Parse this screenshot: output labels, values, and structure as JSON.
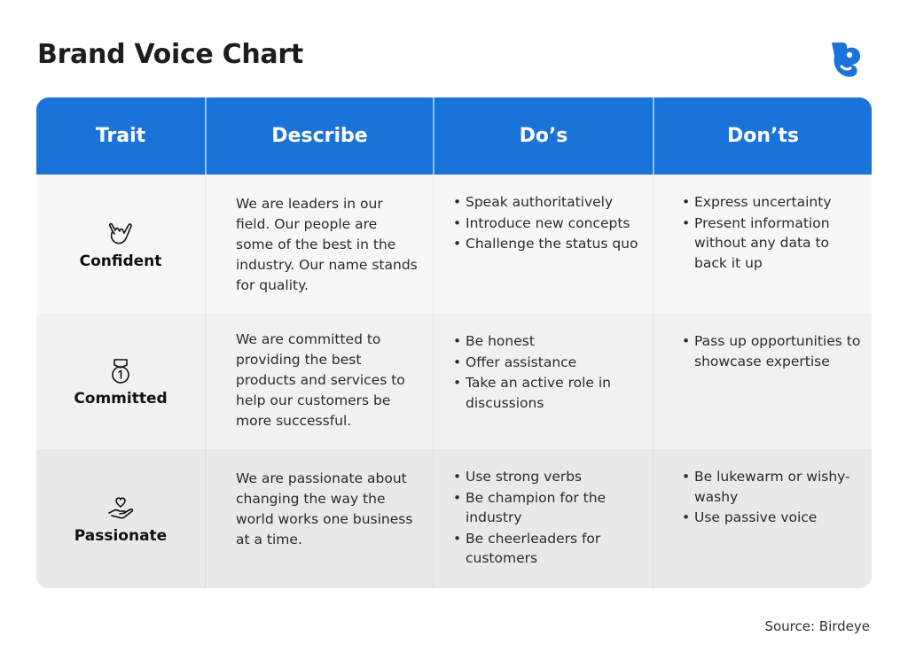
{
  "title": "Brand Voice Chart",
  "logo_icon": "birdeye-logo-icon",
  "colors": {
    "header": "#1a73d9",
    "logo": "#1a73d9"
  },
  "headers": [
    "Trait",
    "Describe",
    "Do’s",
    "Don’ts"
  ],
  "rows": [
    {
      "trait": "Confident",
      "icon": "rock-hand-icon",
      "describe": "We are leaders in our field. Our people are some of the best in the industry. Our name stands for quality.",
      "dos": [
        "Speak authoritatively",
        "Introduce new concepts",
        "Challenge the status quo"
      ],
      "donts": [
        "Express uncertainty",
        "Present information without any data to back it up"
      ]
    },
    {
      "trait": "Committed",
      "icon": "medal-icon",
      "describe": "We are committed to providing the best products and services to help our customers be more successful.",
      "dos": [
        "Be honest",
        "Offer assistance",
        "Take an active role in discussions"
      ],
      "donts": [
        "Pass up opportunities to showcase expertise"
      ]
    },
    {
      "trait": "Passionate",
      "icon": "heart-in-hand-icon",
      "describe": "We are passionate about changing the way the world works one business at a time.",
      "dos": [
        "Use strong verbs",
        "Be champion for the industry",
        "Be cheerleaders for customers"
      ],
      "donts": [
        "Be lukewarm or wishy-washy",
        "Use passive voice"
      ]
    }
  ],
  "source": "Source: Birdeye"
}
